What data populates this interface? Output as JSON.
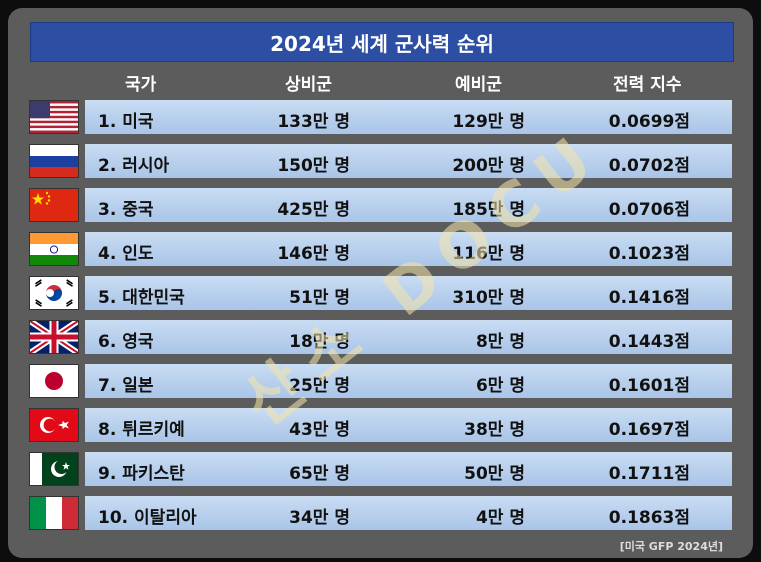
{
  "title": "2024년 세계 군사력 순위",
  "headers": {
    "country": "국가",
    "active": "상비군",
    "reserve": "예비군",
    "power": "전력 지수"
  },
  "rows": [
    {
      "name": "1. 미국",
      "active": "133만 명",
      "reserve": "129만 명",
      "power": "0.0699점",
      "flag": "usa-flag-icon"
    },
    {
      "name": "2. 러시아",
      "active": "150만 명",
      "reserve": "200만 명",
      "power": "0.0702점",
      "flag": "russia-flag-icon"
    },
    {
      "name": "3. 중국",
      "active": "425만 명",
      "reserve": "185만 명",
      "power": "0.0706점",
      "flag": "china-flag-icon"
    },
    {
      "name": "4. 인도",
      "active": "146만 명",
      "reserve": "116만 명",
      "power": "0.1023점",
      "flag": "india-flag-icon"
    },
    {
      "name": "5. 대한민국",
      "active": "51만 명",
      "reserve": "310만 명",
      "power": "0.1416점",
      "flag": "korea-flag-icon"
    },
    {
      "name": "6. 영국",
      "active": "18만 명",
      "reserve": "8만 명",
      "power": "0.1443점",
      "flag": "uk-flag-icon"
    },
    {
      "name": "7. 일본",
      "active": "25만 명",
      "reserve": "6만 명",
      "power": "0.1601점",
      "flag": "japan-flag-icon"
    },
    {
      "name": "8. 튀르키예",
      "active": "43만 명",
      "reserve": "38만 명",
      "power": "0.1697점",
      "flag": "turkey-flag-icon"
    },
    {
      "name": "9. 파키스탄",
      "active": "65만 명",
      "reserve": "50만 명",
      "power": "0.1711점",
      "flag": "pakistan-flag-icon"
    },
    {
      "name": "10. 이탈리아",
      "active": "34만 명",
      "reserve": "4만 명",
      "power": "0.1863점",
      "flag": "italy-flag-icon"
    }
  ],
  "source": "[미국 GFP 2024년]",
  "watermark": "산소 DOCU",
  "colors": {
    "title_bar": "#2c4ea3",
    "row_bar": "#b8d1ee",
    "background": "#5c5c5c"
  }
}
